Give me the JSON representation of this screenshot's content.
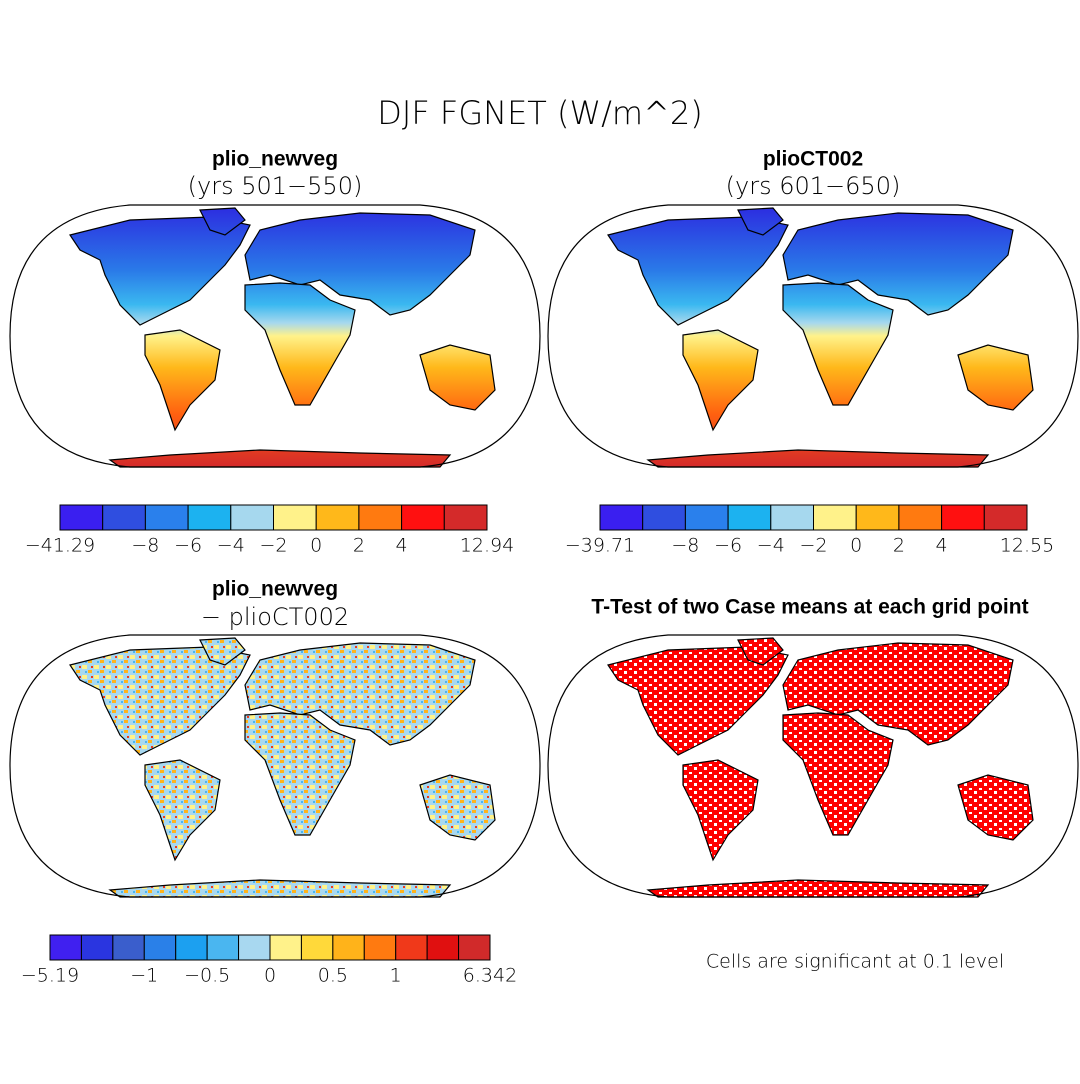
{
  "title": "DJF FGNET (W/m^2)",
  "panels": [
    {
      "title": "plio_newveg",
      "subtitle": "(yrs 501−550)",
      "colorbar": {
        "colors": [
          "#3a1ff0",
          "#2f4ee0",
          "#2a80ec",
          "#1cb2f0",
          "#a6d8ee",
          "#fff28a",
          "#ffb81a",
          "#ff7a10",
          "#ff1010",
          "#d42a2a"
        ],
        "labels": [
          "−41.29",
          null,
          "−8",
          "−6",
          "−4",
          "−2",
          "0",
          "2",
          "4",
          null,
          "12.94"
        ]
      }
    },
    {
      "title": "plioCT002",
      "subtitle": "(yrs 601−650)",
      "colorbar": {
        "colors": [
          "#3a1ff0",
          "#2f4ee0",
          "#2a80ec",
          "#1cb2f0",
          "#a6d8ee",
          "#fff28a",
          "#ffb81a",
          "#ff7a10",
          "#ff1010",
          "#d42a2a"
        ],
        "labels": [
          "−39.71",
          null,
          "−8",
          "−6",
          "−4",
          "−2",
          "0",
          "2",
          "4",
          null,
          "12.55"
        ]
      }
    },
    {
      "title": "plio_newveg",
      "subtitle": "− plioCT002",
      "colorbar": {
        "colors": [
          "#4020f0",
          "#2a35e0",
          "#3a5ecc",
          "#2a80e8",
          "#1ca0f0",
          "#4ab6f0",
          "#a8d8f0",
          "#fff28a",
          "#ffd93a",
          "#ffb31a",
          "#ff7a10",
          "#f0391a",
          "#e01010",
          "#d12a2a"
        ],
        "labels": [
          "−5.19",
          null,
          null,
          "−1",
          null,
          "−0.5",
          null,
          "0",
          null,
          "0.5",
          null,
          "1",
          null,
          null,
          "6.342"
        ]
      }
    },
    {
      "title": "T-Test of two Case means at each grid point",
      "note": "Cells are significant at 0.1 level"
    }
  ]
}
